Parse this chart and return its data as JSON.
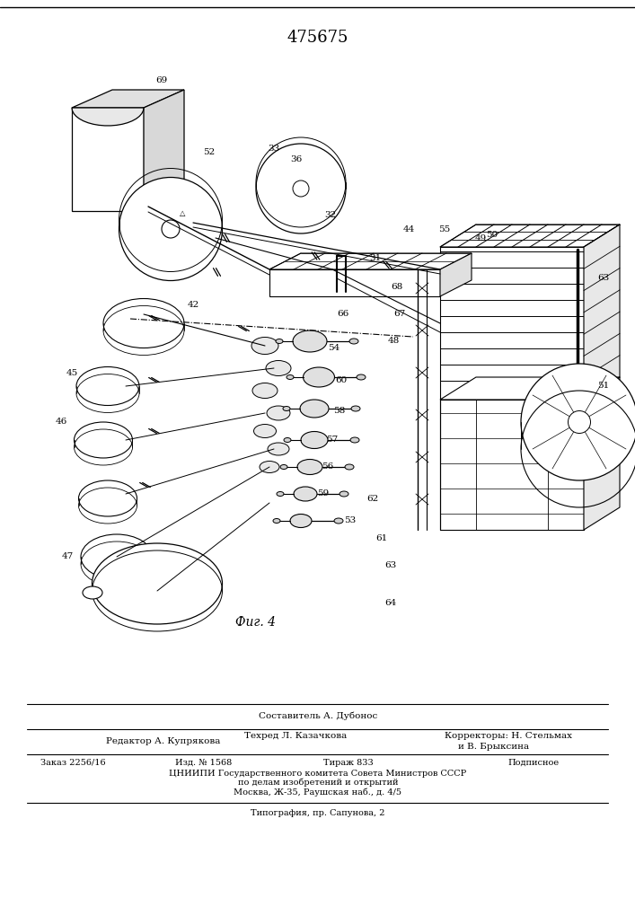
{
  "patent_number": "475675",
  "figure_caption": "Фиг. 4",
  "bg_color": "#ffffff",
  "text_color": "#000000",
  "footer": {
    "composer_label": "Составитель А. Дубонос",
    "editor_label": "Редактор А. Купрякова",
    "techred_label": "Техред Л. Казачкова",
    "correctors_label": "Корректоры: Н. Стельмах",
    "correctors_label2": "и В. Брыксина",
    "order_label": "Заказ 2256/16",
    "izd_label": "Изд. № 1568",
    "tirazh_label": "Тираж 833",
    "podpisnoe_label": "Подписное",
    "cniiipi_line1": "ЦНИИПИ Государственного комитета Совета Министров СССР",
    "cniiipi_line2": "по делам изобретений и открытий",
    "cniiipi_line3": "Москва, Ж-35, Раушская наб., д. 4/5",
    "tipografia": "Типография, пр. Сапунова, 2"
  }
}
